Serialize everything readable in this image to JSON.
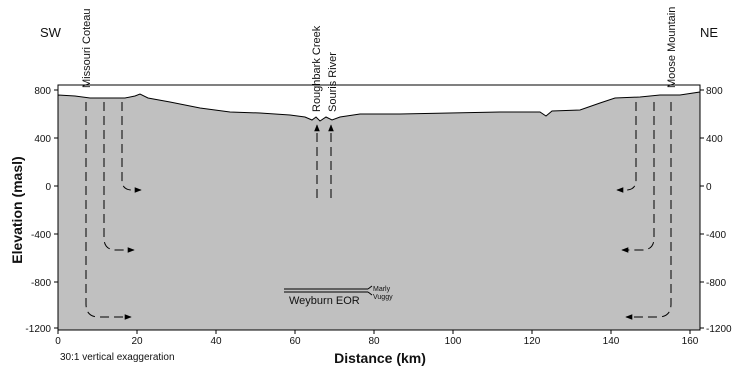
{
  "corner_labels": {
    "left": "SW",
    "right": "NE"
  },
  "place_labels": {
    "missouri_coteau": "Missouri Coteau",
    "roughbark_creek": "Roughbark Creek",
    "souris_river": "Souris River",
    "moose_mountain": "Moose Mountain"
  },
  "axes": {
    "y_label": "Elevation (masl)",
    "x_label": "Distance (km)",
    "y_ticks_left": [
      "800",
      "400",
      "0",
      "-400",
      "-800",
      "-1200"
    ],
    "y_ticks_right": [
      "800",
      "400",
      "0",
      "-400",
      "-800",
      "-1200"
    ],
    "x_ticks": [
      "0",
      "20",
      "40",
      "60",
      "80",
      "100",
      "120",
      "140",
      "160"
    ]
  },
  "note": "30:1 vertical exaggeration",
  "weyburn": {
    "label": "Weyburn EOR",
    "marly": "Marly",
    "vuggy": "Vuggy"
  },
  "colors": {
    "fill": "#c0c0c0",
    "outline": "#000000"
  }
}
